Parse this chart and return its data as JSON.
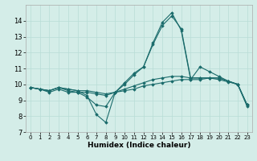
{
  "xlabel": "Humidex (Indice chaleur)",
  "xlim": [
    -0.5,
    23.5
  ],
  "ylim": [
    7,
    15
  ],
  "yticks": [
    7,
    8,
    9,
    10,
    11,
    12,
    13,
    14
  ],
  "xticks": [
    0,
    1,
    2,
    3,
    4,
    5,
    6,
    7,
    8,
    9,
    10,
    11,
    12,
    13,
    14,
    15,
    16,
    17,
    18,
    19,
    20,
    21,
    22,
    23
  ],
  "bg_color": "#d4ede8",
  "line_color": "#1a6b6b",
  "grid_color": "#b8ddd6",
  "lines": [
    {
      "x": [
        0,
        1,
        2,
        3,
        4,
        5,
        6,
        7,
        8,
        9,
        10,
        11,
        12,
        13,
        14,
        15,
        16,
        17,
        18,
        19,
        20,
        21,
        22,
        23
      ],
      "y": [
        9.8,
        9.7,
        9.6,
        9.8,
        9.7,
        9.6,
        9.3,
        8.1,
        7.6,
        9.5,
        10.0,
        10.6,
        11.1,
        12.5,
        13.7,
        14.3,
        13.5,
        10.4,
        10.4,
        10.4,
        10.4,
        10.2,
        10.0,
        8.6
      ]
    },
    {
      "x": [
        0,
        1,
        2,
        3,
        4,
        5,
        6,
        7,
        8,
        9,
        10,
        11,
        12,
        13,
        14,
        15,
        16,
        17,
        18,
        19,
        20,
        21,
        22,
        23
      ],
      "y": [
        9.8,
        9.7,
        9.6,
        9.8,
        9.6,
        9.5,
        9.2,
        8.7,
        8.6,
        9.5,
        10.1,
        10.7,
        11.1,
        12.6,
        13.9,
        14.5,
        13.4,
        10.3,
        11.1,
        10.8,
        10.5,
        10.2,
        10.0,
        8.7
      ]
    },
    {
      "x": [
        0,
        1,
        2,
        3,
        4,
        5,
        6,
        7,
        8,
        9,
        10,
        11,
        12,
        13,
        14,
        15,
        16,
        17,
        18,
        19,
        20,
        21,
        22,
        23
      ],
      "y": [
        9.8,
        9.7,
        9.5,
        9.7,
        9.5,
        9.5,
        9.5,
        9.4,
        9.3,
        9.5,
        9.6,
        9.7,
        9.9,
        10.0,
        10.1,
        10.2,
        10.3,
        10.3,
        10.3,
        10.4,
        10.4,
        10.2,
        10.0,
        8.7
      ]
    },
    {
      "x": [
        0,
        1,
        2,
        3,
        4,
        5,
        6,
        7,
        8,
        9,
        10,
        11,
        12,
        13,
        14,
        15,
        16,
        17,
        18,
        19,
        20,
        21,
        22,
        23
      ],
      "y": [
        9.8,
        9.7,
        9.6,
        9.8,
        9.7,
        9.6,
        9.6,
        9.5,
        9.4,
        9.5,
        9.7,
        9.9,
        10.1,
        10.3,
        10.4,
        10.5,
        10.5,
        10.4,
        10.4,
        10.4,
        10.3,
        10.15,
        10.0,
        8.7
      ]
    }
  ]
}
